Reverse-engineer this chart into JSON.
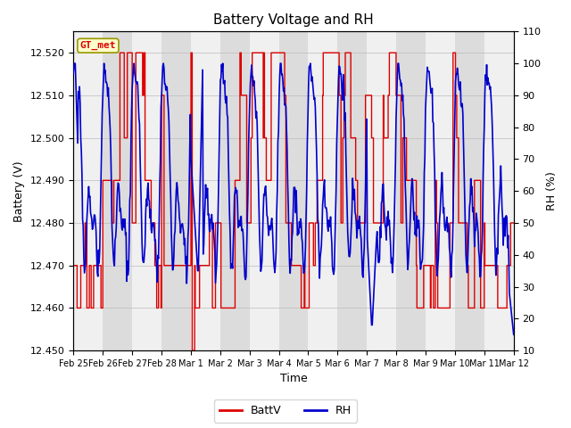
{
  "title": "Battery Voltage and RH",
  "xlabel": "Time",
  "ylabel_left": "Battery (V)",
  "ylabel_right": "RH (%)",
  "ylim_left": [
    12.45,
    12.525
  ],
  "ylim_right": [
    10,
    110
  ],
  "yticks_left": [
    12.45,
    12.46,
    12.47,
    12.48,
    12.49,
    12.5,
    12.51,
    12.52
  ],
  "yticks_right": [
    10,
    20,
    30,
    40,
    50,
    60,
    70,
    80,
    90,
    100,
    110
  ],
  "x_labels": [
    "Feb 25",
    "Feb 26",
    "Feb 27",
    "Feb 28",
    "Mar 1",
    "Mar 2",
    "Mar 3",
    "Mar 4",
    "Mar 5",
    "Mar 6",
    "Mar 7",
    "Mar 8",
    "Mar 9",
    "Mar 10",
    "Mar 11",
    "Mar 12"
  ],
  "batt_color": "#dd0000",
  "rh_color": "#0000cc",
  "background_color": "#ffffff",
  "band_color_gray": "#dcdcdc",
  "band_color_white": "#f0f0f0",
  "legend_label_batt": "BattV",
  "legend_label_rh": "RH",
  "station_label": "GT_met",
  "grid_color": "#bbbbbb",
  "n_days": 15,
  "n_per_day": 48
}
